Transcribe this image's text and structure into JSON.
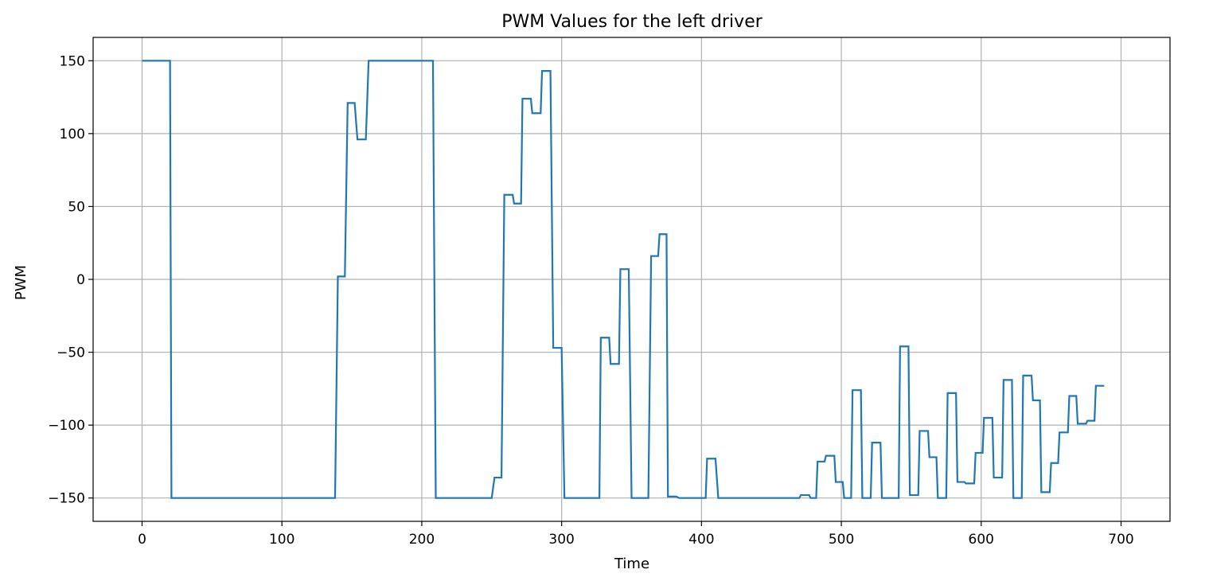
{
  "chart_data": {
    "type": "line",
    "title": "PWM Values for the left driver",
    "xlabel": "Time",
    "ylabel": "PWM",
    "xlim": [
      -35,
      735
    ],
    "ylim": [
      -166,
      166
    ],
    "xticks": [
      0,
      100,
      200,
      300,
      400,
      500,
      600,
      700
    ],
    "xtick_labels": [
      "0",
      "100",
      "200",
      "300",
      "400",
      "500",
      "600",
      "700"
    ],
    "yticks": [
      150,
      100,
      50,
      0,
      -50,
      -100,
      -150
    ],
    "ytick_labels": [
      "150",
      "100",
      "50",
      "0",
      "−50",
      "−100",
      "−150"
    ],
    "grid": true,
    "series": [
      {
        "color": "#1f77b4",
        "step": true,
        "points": [
          [
            0,
            150
          ],
          [
            20,
            150
          ],
          [
            21,
            -150
          ],
          [
            138,
            -150
          ],
          [
            140,
            2
          ],
          [
            145,
            2
          ],
          [
            147,
            121
          ],
          [
            152,
            121
          ],
          [
            154,
            96
          ],
          [
            160,
            96
          ],
          [
            162,
            150
          ],
          [
            208,
            150
          ],
          [
            210,
            -150
          ],
          [
            250,
            -150
          ],
          [
            252,
            -136
          ],
          [
            257,
            -136
          ],
          [
            259,
            58
          ],
          [
            265,
            58
          ],
          [
            266,
            52
          ],
          [
            271,
            52
          ],
          [
            272,
            124
          ],
          [
            278,
            124
          ],
          [
            279,
            114
          ],
          [
            285,
            114
          ],
          [
            286,
            143
          ],
          [
            292,
            143
          ],
          [
            294,
            -47
          ],
          [
            300,
            -47
          ],
          [
            302,
            -150
          ],
          [
            327,
            -150
          ],
          [
            328,
            -40
          ],
          [
            334,
            -40
          ],
          [
            335,
            -58
          ],
          [
            341,
            -58
          ],
          [
            342,
            7
          ],
          [
            348,
            7
          ],
          [
            350,
            -150
          ],
          [
            362,
            -150
          ],
          [
            364,
            16
          ],
          [
            369,
            16
          ],
          [
            370,
            31
          ],
          [
            375,
            31
          ],
          [
            376,
            -149
          ],
          [
            382,
            -149
          ],
          [
            384,
            -150
          ],
          [
            403,
            -150
          ],
          [
            404,
            -123
          ],
          [
            410,
            -123
          ],
          [
            412,
            -150
          ],
          [
            470,
            -150
          ],
          [
            471,
            -148
          ],
          [
            477,
            -148
          ],
          [
            478,
            -150
          ],
          [
            482,
            -150
          ],
          [
            483,
            -125
          ],
          [
            488,
            -125
          ],
          [
            489,
            -121
          ],
          [
            495,
            -121
          ],
          [
            496,
            -139
          ],
          [
            501,
            -139
          ],
          [
            502,
            -150
          ],
          [
            507,
            -150
          ],
          [
            508,
            -76
          ],
          [
            514,
            -76
          ],
          [
            515,
            -150
          ],
          [
            521,
            -150
          ],
          [
            522,
            -112
          ],
          [
            528,
            -112
          ],
          [
            529,
            -150
          ],
          [
            541,
            -150
          ],
          [
            542,
            -46
          ],
          [
            548,
            -46
          ],
          [
            549,
            -148
          ],
          [
            555,
            -148
          ],
          [
            556,
            -104
          ],
          [
            562,
            -104
          ],
          [
            563,
            -122
          ],
          [
            568,
            -122
          ],
          [
            569,
            -150
          ],
          [
            575,
            -150
          ],
          [
            576,
            -78
          ],
          [
            582,
            -78
          ],
          [
            583,
            -139
          ],
          [
            588,
            -139
          ],
          [
            589,
            -140
          ],
          [
            595,
            -140
          ],
          [
            596,
            -119
          ],
          [
            601,
            -119
          ],
          [
            602,
            -95
          ],
          [
            608,
            -95
          ],
          [
            609,
            -136
          ],
          [
            615,
            -136
          ],
          [
            616,
            -69
          ],
          [
            622,
            -69
          ],
          [
            623,
            -150
          ],
          [
            629,
            -150
          ],
          [
            630,
            -66
          ],
          [
            636,
            -66
          ],
          [
            637,
            -83
          ],
          [
            642,
            -83
          ],
          [
            643,
            -146
          ],
          [
            649,
            -146
          ],
          [
            650,
            -126
          ],
          [
            655,
            -126
          ],
          [
            656,
            -105
          ],
          [
            662,
            -105
          ],
          [
            663,
            -80
          ],
          [
            668,
            -80
          ],
          [
            669,
            -99
          ],
          [
            675,
            -99
          ],
          [
            676,
            -97
          ],
          [
            681,
            -97
          ],
          [
            682,
            -73
          ],
          [
            688,
            -73
          ]
        ]
      }
    ]
  }
}
